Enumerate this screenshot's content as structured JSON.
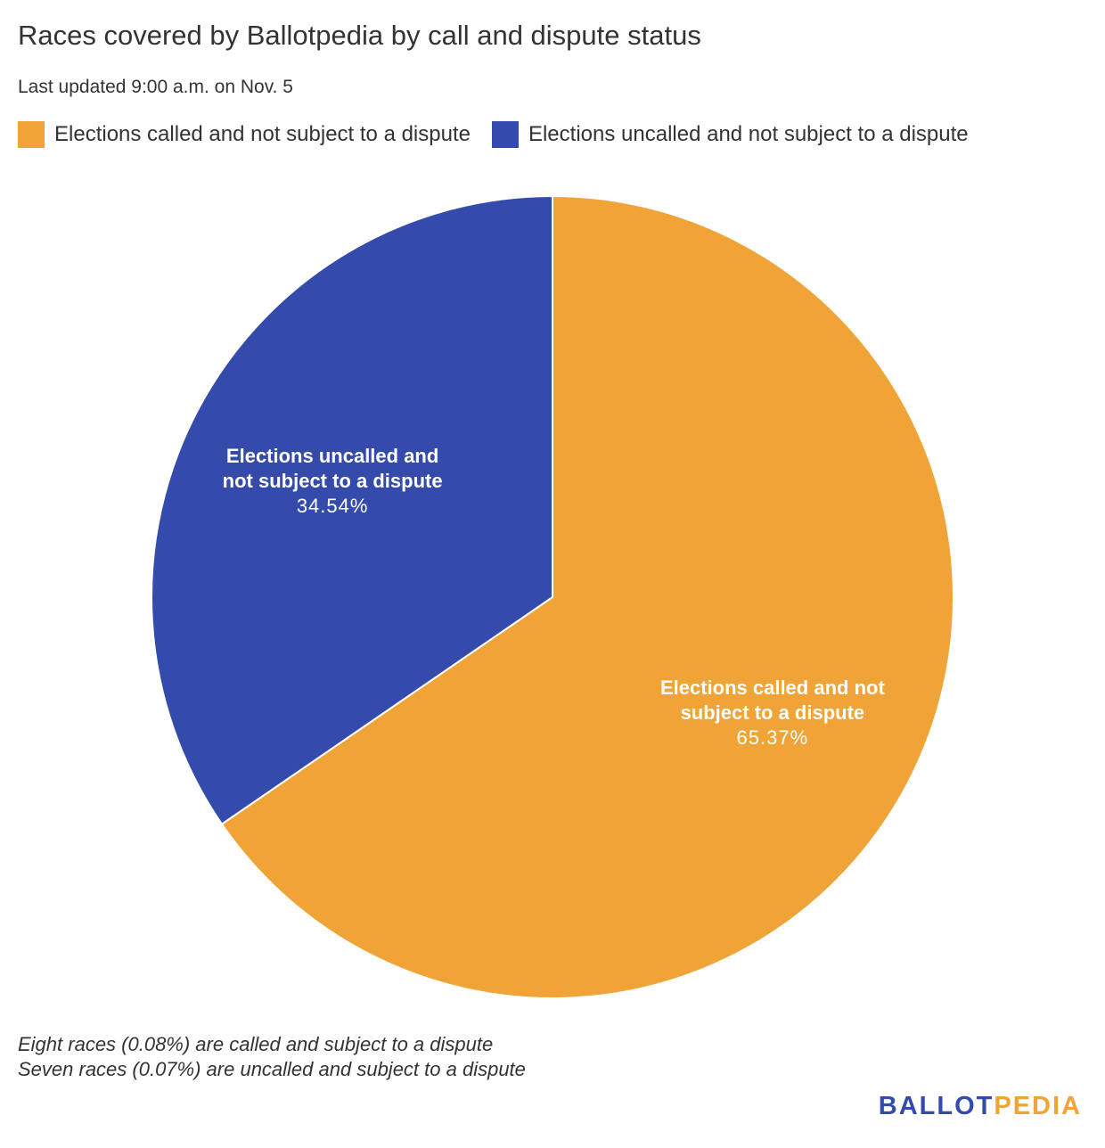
{
  "chart_data": {
    "type": "pie",
    "title": "Races covered by Ballotpedia by call and dispute status",
    "subtitle": "Last updated 9:00 a.m. on Nov. 5",
    "legend_placement": "top",
    "slices": [
      {
        "name": "Elections called and not subject to a dispute",
        "value": 65.37,
        "label": "65.37%",
        "color": "#f0a438"
      },
      {
        "name": "Elections uncalled and not subject to a dispute",
        "value": 34.54,
        "label": "34.54%",
        "color": "#354bab"
      }
    ],
    "annotations": [
      "Eight races (0.08%) are called and subject to a dispute",
      "Seven races (0.07%) are uncalled and subject to a dispute"
    ]
  },
  "logo": {
    "part1": "BALLOT",
    "part2": "PEDIA",
    "color1": "#354bab",
    "color2": "#f0a438"
  }
}
